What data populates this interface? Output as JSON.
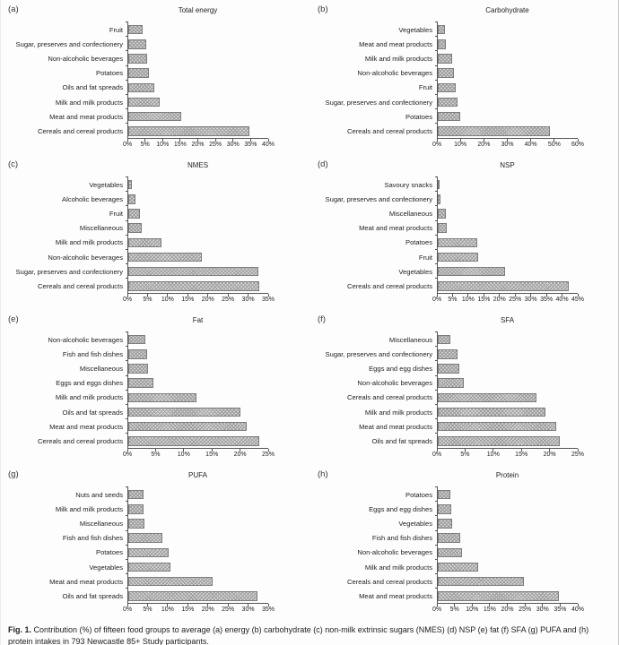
{
  "figure": {
    "caption_label": "Fig. 1.",
    "caption_text": "Contribution (%) of fifteen food groups to average (a) energy (b) carbohydrate (c) non-milk extrinsic sugars (NMES) (d) NSP (e) fat (f) SFA (g) PUFA and (h) protein intakes in 793 Newcastle 85+ Study participants."
  },
  "colors": {
    "background": "#fdfdfd",
    "bar_fill": "#d6d6d6",
    "bar_hatch": "#9b9b9b",
    "bar_border": "#7d7d7d",
    "axis": "#555555",
    "text": "#222222"
  },
  "chart_data": [
    {
      "panel": "(a)",
      "type": "bar",
      "orientation": "horizontal",
      "title": "Total energy",
      "xlabel": "",
      "ylabel": "",
      "xlim": [
        0,
        40
      ],
      "grid": false,
      "xtick_labels": [
        "0%",
        "5%",
        "10%",
        "15%",
        "20%",
        "25%",
        "30%",
        "35%",
        "40%"
      ],
      "categories": [
        "Fruit",
        "Sugar, preserves and confectionery",
        "Non-alcoholic beverages",
        "Potatoes",
        "Oils and fat spreads",
        "Milk and milk products",
        "Meat and meat products",
        "Cereals and cereal products"
      ],
      "values": [
        4,
        5,
        5.5,
        6,
        7.5,
        9,
        15,
        34.5
      ]
    },
    {
      "panel": "(b)",
      "type": "bar",
      "orientation": "horizontal",
      "title": "Carbohydrate",
      "xlabel": "",
      "ylabel": "",
      "xlim": [
        0,
        60
      ],
      "grid": false,
      "xtick_labels": [
        "0%",
        "10%",
        "20%",
        "30%",
        "40%",
        "50%",
        "60%"
      ],
      "categories": [
        "Vegetables",
        "Meat and meat products",
        "Milk and milk products",
        "Non-alcoholic beverages",
        "Fruit",
        "Sugar, preserves and confectionery",
        "Potatoes",
        "Cereals and cereal products"
      ],
      "values": [
        3,
        3.5,
        6,
        7,
        7.5,
        8.5,
        9.5,
        48
      ]
    },
    {
      "panel": "(c)",
      "type": "bar",
      "orientation": "horizontal",
      "title": "NMES",
      "xlabel": "",
      "ylabel": "",
      "xlim": [
        0,
        35
      ],
      "grid": false,
      "xtick_labels": [
        "0%",
        "5%",
        "10%",
        "15%",
        "20%",
        "25%",
        "30%",
        "35%"
      ],
      "categories": [
        "Vegetables",
        "Alcoholic beverages",
        "Fruit",
        "Miscellaneous",
        "Milk and milk products",
        "Non-alcoholic beverages",
        "Sugar, preserves and confectionery",
        "Cereals and cereal products"
      ],
      "values": [
        0.8,
        1.7,
        2.9,
        3.4,
        8.2,
        18.5,
        32.5,
        32.8
      ]
    },
    {
      "panel": "(d)",
      "type": "bar",
      "orientation": "horizontal",
      "title": "NSP",
      "xlabel": "",
      "ylabel": "",
      "xlim": [
        0,
        45
      ],
      "grid": false,
      "xtick_labels": [
        "0%",
        "5%",
        "10%",
        "15%",
        "20%",
        "25%",
        "30%",
        "35%",
        "40%",
        "45%"
      ],
      "categories": [
        "Savoury snacks",
        "Sugar, preserves and confectionery",
        "Miscellaneous",
        "Meat and meat products",
        "Potatoes",
        "Fruit",
        "Vegetables",
        "Cereals and cereal products"
      ],
      "values": [
        0.5,
        1,
        2.5,
        3,
        12.8,
        13,
        21.5,
        42
      ]
    },
    {
      "panel": "(e)",
      "type": "bar",
      "orientation": "horizontal",
      "title": "Fat",
      "xlabel": "",
      "ylabel": "",
      "xlim": [
        0,
        25
      ],
      "grid": false,
      "xtick_labels": [
        "0%",
        "5%",
        "10%",
        "15%",
        "20%",
        "25%"
      ],
      "categories": [
        "Non-alcoholic beverages",
        "Fish and fish dishes",
        "Miscellaneous",
        "Eggs and eggs dishes",
        "Milk and milk products",
        "Oils and fat spreads",
        "Meat and meat products",
        "Cereals and cereal products"
      ],
      "values": [
        3,
        3.3,
        3.6,
        4.5,
        12.2,
        20,
        21.2,
        23.4
      ]
    },
    {
      "panel": "(f)",
      "type": "bar",
      "orientation": "horizontal",
      "title": "SFA",
      "xlabel": "",
      "ylabel": "",
      "xlim": [
        0,
        25
      ],
      "grid": false,
      "xtick_labels": [
        "0%",
        "5%",
        "10%",
        "15%",
        "20%",
        "25%"
      ],
      "categories": [
        "Miscellaneous",
        "Sugar, preserves and confectionery",
        "Eggs and egg dishes",
        "Non-alcoholic beverages",
        "Cereals and cereal products",
        "Milk and milk products",
        "Meat and meat products",
        "Oils and fat spreads"
      ],
      "values": [
        2.2,
        3.6,
        3.8,
        4.6,
        17.6,
        19.3,
        21.2,
        21.8
      ]
    },
    {
      "panel": "(g)",
      "type": "bar",
      "orientation": "horizontal",
      "title": "PUFA",
      "xlabel": "",
      "ylabel": "",
      "xlim": [
        0,
        35
      ],
      "grid": false,
      "xtick_labels": [
        "0%",
        "5%",
        "10%",
        "15%",
        "20%",
        "25%",
        "30%",
        "35%"
      ],
      "categories": [
        "Nuts and seeds",
        "Milk and milk products",
        "Miscellaneous",
        "Fish and fish dishes",
        "Potatoes",
        "Vegetables",
        "Meat and meat products",
        "Oils and fat spreads"
      ],
      "values": [
        3.8,
        3.8,
        4.1,
        8.5,
        10,
        10.5,
        21,
        32.4
      ]
    },
    {
      "panel": "(h)",
      "type": "bar",
      "orientation": "horizontal",
      "title": "Protein",
      "xlabel": "",
      "ylabel": "",
      "xlim": [
        0,
        40
      ],
      "grid": false,
      "xtick_labels": [
        "0%",
        "5%",
        "10%",
        "15%",
        "20%",
        "25%",
        "30%",
        "35%",
        "40%"
      ],
      "categories": [
        "Potatoes",
        "Eggs and egg dishes",
        "Vegetables",
        "Fish and fish dishes",
        "Non-alcoholic beverages",
        "Milk and milk products",
        "Cereals and cereal products",
        "Meat and meat products"
      ],
      "values": [
        3.5,
        3.8,
        4,
        6.5,
        7,
        11.5,
        24.5,
        34.7
      ]
    }
  ]
}
